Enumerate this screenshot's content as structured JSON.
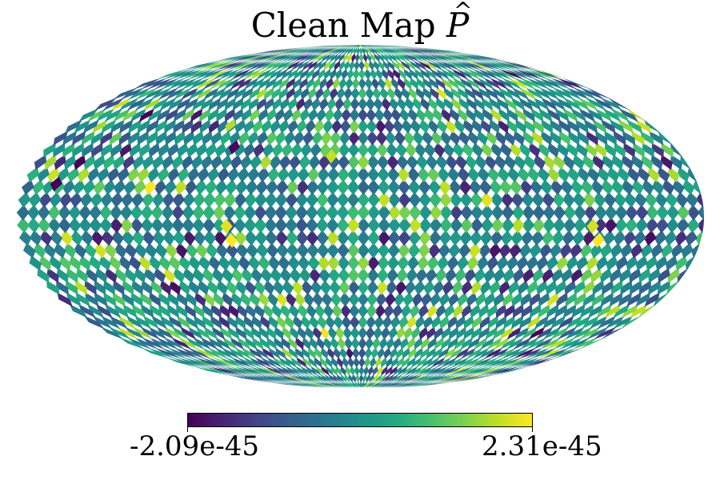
{
  "chart_data": {
    "type": "heatmap",
    "projection": "mollweide",
    "title": "Clean Map",
    "title_symbol": "P",
    "colormap": "viridis",
    "colormap_stops": [
      "#440154",
      "#482475",
      "#414487",
      "#355f8d",
      "#2a788e",
      "#21918c",
      "#22a884",
      "#44bf70",
      "#7ad151",
      "#bddf26",
      "#fde725"
    ],
    "colorbar": {
      "min_label": "-2.09e-45",
      "max_label": "2.31e-45",
      "vmin": -2.09e-45,
      "vmax": 2.31e-45
    },
    "hotspots": [
      {
        "lon": -126,
        "lat": -10,
        "value": 2.31e-45
      },
      {
        "lon": -122,
        "lat": -4,
        "value": 2e-45
      },
      {
        "lon": 68,
        "lat": -10,
        "value": 2.31e-45
      },
      {
        "lon": 70,
        "lat": -4,
        "value": 2.1e-45
      },
      {
        "lon": 16,
        "lat": 26,
        "value": 1.9e-45
      },
      {
        "lon": 80,
        "lat": 40,
        "value": 1.8e-45
      },
      {
        "lon": 162,
        "lat": 14,
        "value": -2.09e-45
      },
      {
        "lon": 72,
        "lat": 30,
        "value": -2e-45
      }
    ]
  }
}
